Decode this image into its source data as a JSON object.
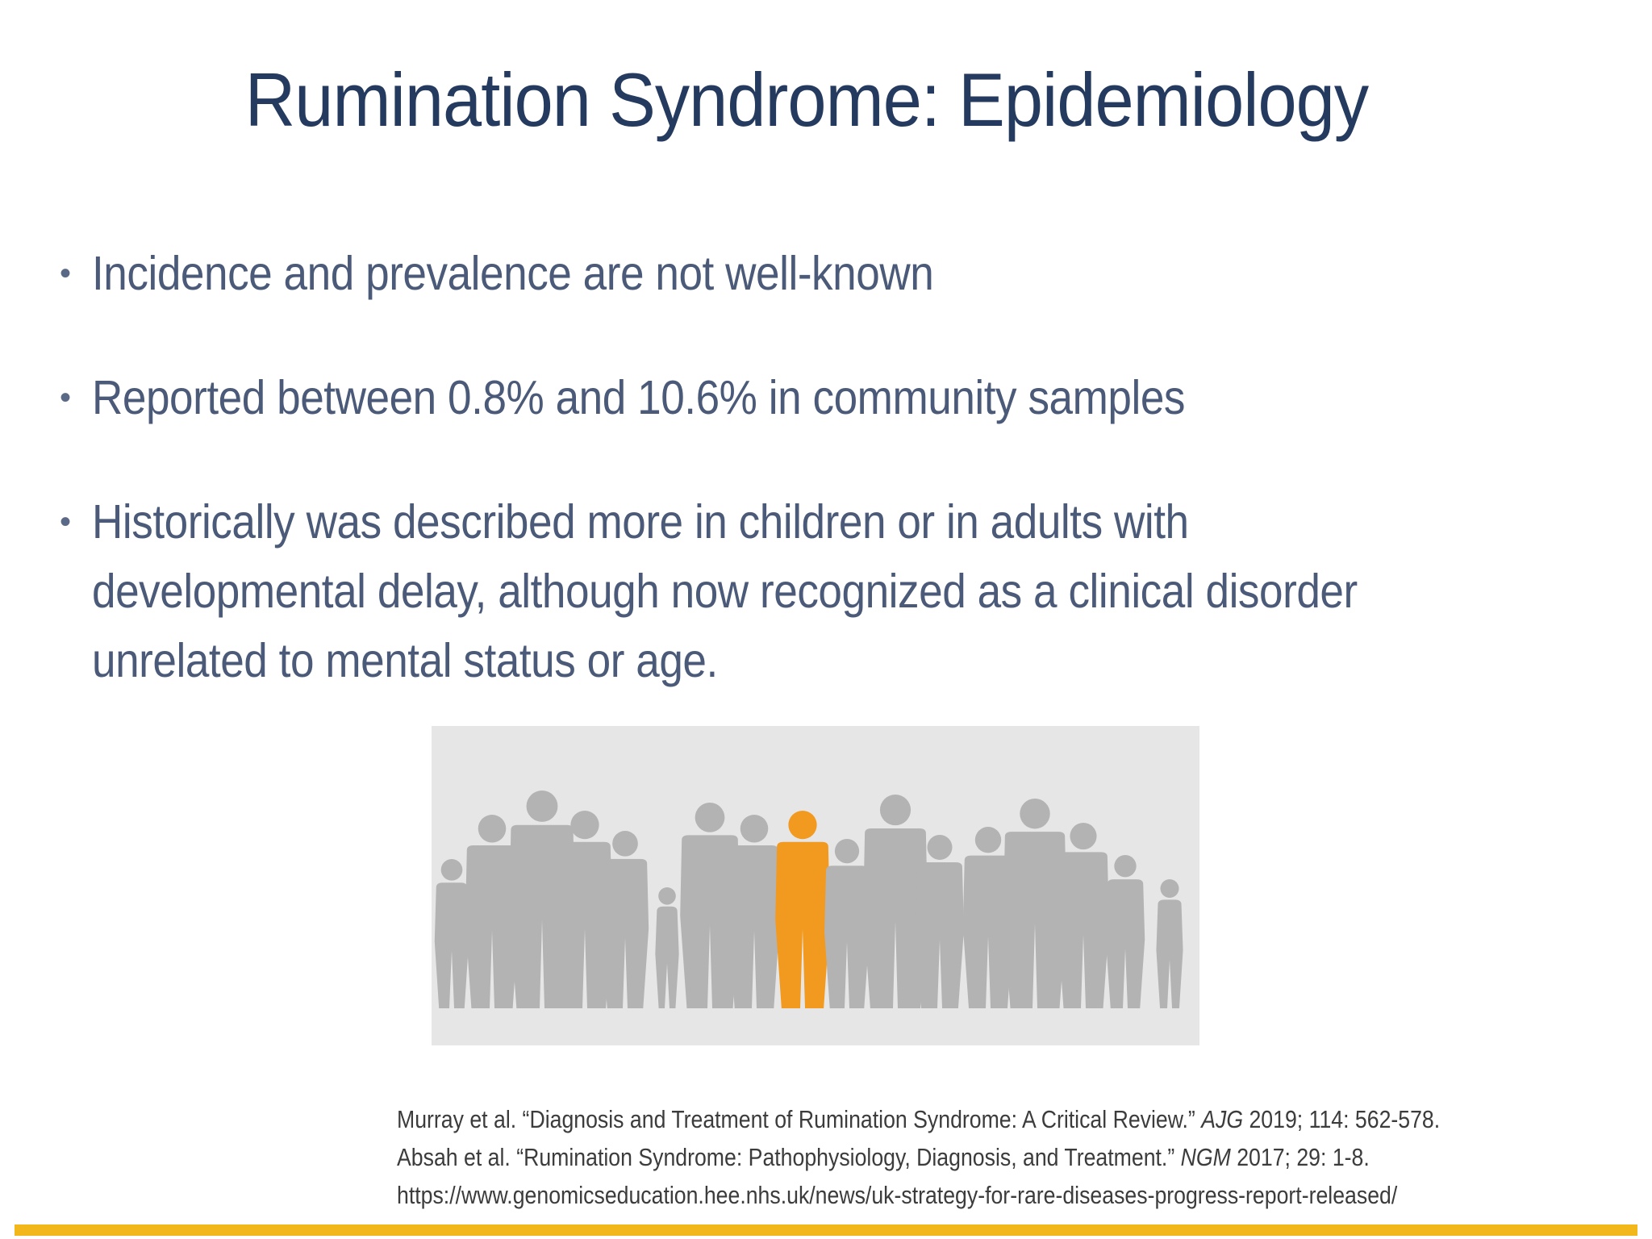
{
  "slide": {
    "title": "Rumination Syndrome: Epidemiology",
    "bullets": [
      {
        "text": "Incidence and prevalence are not well-known"
      },
      {
        "text": "Reported between 0.8% and 10.6% in community samples"
      },
      {
        "text": "Historically was described more in children or in adults with\ndevelopmental delay, although now recognized as a clinical disorder\nunrelated to mental status or age."
      }
    ],
    "bullet_symbol": "•",
    "figure": {
      "icon": "crowd-silhouettes-icon",
      "background_color": "#e6e6e6",
      "crowd_color": "#b3b3b3",
      "highlight_color": "#f29a1f"
    },
    "references": [
      {
        "pre": "Murray et al. “Diagnosis and Treatment of Rumination Syndrome: A Critical Review.” ",
        "journal": "AJG",
        "post": " 2019; 114: 562-578."
      },
      {
        "pre": "Absah et al. “Rumination Syndrome: Pathophysiology, Diagnosis, and Treatment.” ",
        "journal": "NGM",
        "post": " 2017; 29: 1-8."
      },
      {
        "pre": "https://www.genomicseducation.hee.nhs.uk/news/uk-strategy-for-rare-diseases-progress-report-released/",
        "journal": "",
        "post": ""
      }
    ],
    "colors": {
      "title": "#243a5e",
      "body": "#4a5a78",
      "accent_bar": "#f2b71b"
    }
  }
}
